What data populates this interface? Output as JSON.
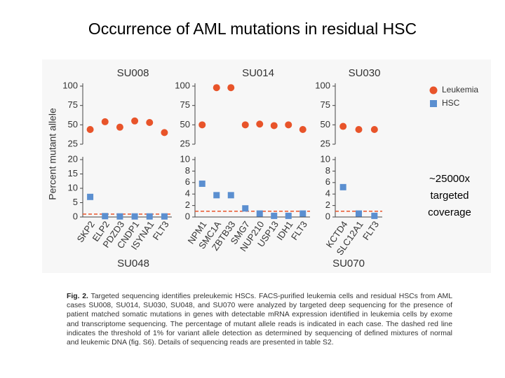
{
  "slide_title": "Occurrence of AML mutations in residual HSC",
  "chart_data": [
    {
      "type": "scatter",
      "title": "SU008",
      "ylabel": "Percent mutant allele",
      "categories": [
        "SKP2",
        "ELP2",
        "PDZD3",
        "CNDP1",
        "ISYNA1",
        "FLT3"
      ],
      "ylim": [
        25,
        100
      ],
      "yticks": [
        25,
        50,
        75,
        100
      ],
      "y2lim": [
        0,
        20
      ],
      "y2ticks": [
        0,
        5,
        10,
        15,
        20
      ],
      "threshold": 1,
      "series": [
        {
          "name": "Leukemia",
          "color": "#e8542a",
          "values": [
            44,
            54,
            47,
            55,
            53,
            40
          ]
        },
        {
          "name": "HSC",
          "color": "#5b8fd0",
          "axis": "y2",
          "values": [
            7,
            0.3,
            0.2,
            0.2,
            0.2,
            0.2
          ]
        }
      ]
    },
    {
      "type": "scatter",
      "title": "SU014",
      "categories": [
        "NPM1",
        "SMC1A",
        "ZBTB33",
        "SMG7",
        "NUP210",
        "USP13",
        "IDH1",
        "FLT3"
      ],
      "ylim": [
        25,
        100
      ],
      "yticks": [
        25,
        50,
        75,
        100
      ],
      "y2lim": [
        0,
        10
      ],
      "y2ticks": [
        0,
        2,
        4,
        6,
        8,
        10
      ],
      "threshold": 1,
      "series": [
        {
          "color": "#e8542a",
          "values": [
            50,
            98,
            98,
            50,
            51,
            49,
            50,
            44
          ]
        },
        {
          "color": "#5b8fd0",
          "axis": "y2",
          "values": [
            5.8,
            3.8,
            3.8,
            1.5,
            0.6,
            0.2,
            0.2,
            0.6
          ]
        }
      ]
    },
    {
      "type": "scatter",
      "title": "SU030",
      "categories": [
        "KCTD4",
        "SLC12A1",
        "FLT3"
      ],
      "ylim": [
        25,
        100
      ],
      "yticks": [
        25,
        50,
        75,
        100
      ],
      "y2lim": [
        0,
        10
      ],
      "y2ticks": [
        0,
        2,
        4,
        6,
        8,
        10
      ],
      "threshold": 1,
      "series": [
        {
          "color": "#e8542a",
          "values": [
            48,
            44,
            44
          ]
        },
        {
          "color": "#5b8fd0",
          "axis": "y2",
          "values": [
            5.2,
            0.6,
            0.2
          ]
        }
      ]
    }
  ],
  "other_panels": [
    "SU048",
    "SU070"
  ],
  "annotation_lines": [
    "~25000x",
    "targeted",
    "coverage"
  ],
  "caption": {
    "label": "Fig. 2.",
    "text": "Targeted sequencing identifies preleukemic HSCs. FACS-purified leukemia cells and residual HSCs from AML cases SU008, SU014, SU030, SU048, and SU070 were analyzed by targeted deep sequencing for the presence of patient matched somatic mutations in genes with detectable mRNA expression identified in leukemia cells by exome and transcriptome sequencing. The percentage of mutant allele reads is indicated in each case. The dashed red line indicates the threshold of 1% for variant allele detection as determined by sequencing of defined mixtures of normal and leukemic DNA (fig. S6). Details of sequencing reads are presented in table S2."
  }
}
